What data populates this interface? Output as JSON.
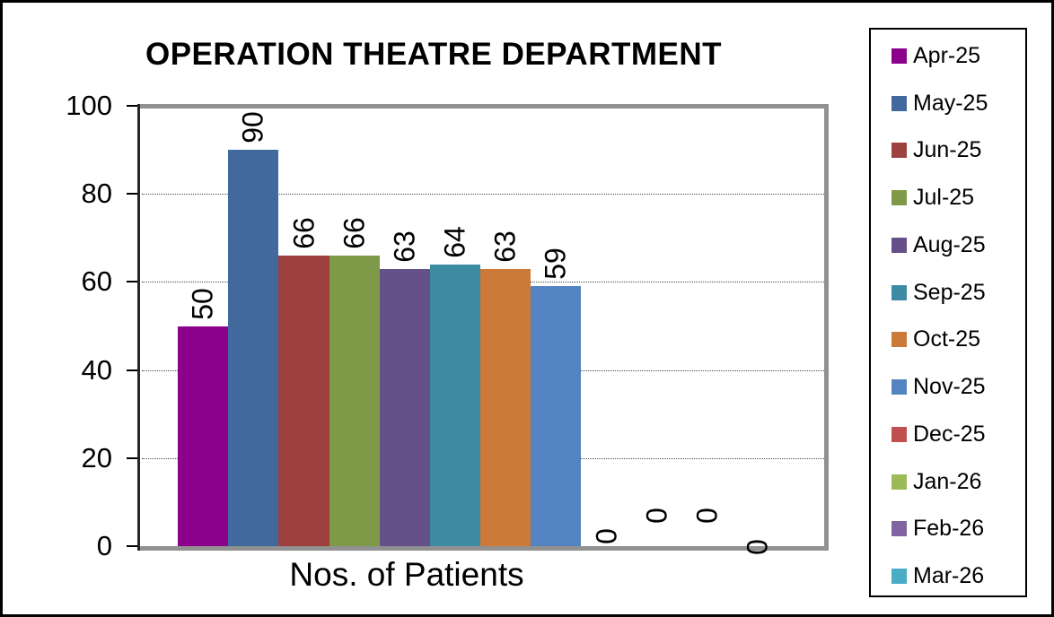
{
  "chart_data": {
    "type": "bar",
    "title": "OPERATION THEATRE DEPARTMENT",
    "xlabel": "Nos. of Patients",
    "ylabel": "",
    "ylim": [
      0,
      100
    ],
    "yticks": [
      0,
      20,
      40,
      60,
      80,
      100
    ],
    "grid": "horizontal-dotted",
    "legend_position": "right",
    "categories": [
      "Nos. of Patients"
    ],
    "series": [
      {
        "name": "Apr-25",
        "value": 50,
        "color": "#8B018B"
      },
      {
        "name": "May-25",
        "value": 90,
        "color": "#41699E"
      },
      {
        "name": "Jun-25",
        "value": 66,
        "color": "#9E413E"
      },
      {
        "name": "Jul-25",
        "value": 66,
        "color": "#7E9A48"
      },
      {
        "name": "Aug-25",
        "value": 63,
        "color": "#655089"
      },
      {
        "name": "Sep-25",
        "value": 64,
        "color": "#3E8CA3"
      },
      {
        "name": "Oct-25",
        "value": 63,
        "color": "#CB7A38"
      },
      {
        "name": "Nov-25",
        "value": 59,
        "color": "#5384C1"
      },
      {
        "name": "Dec-25",
        "value": 0,
        "color": "#C0504D"
      },
      {
        "name": "Jan-26",
        "value": 0,
        "color": "#9BBB59"
      },
      {
        "name": "Feb-26",
        "value": 0,
        "color": "#8064A2"
      },
      {
        "name": "Mar-26",
        "value": 0,
        "color": "#4BACC6"
      }
    ],
    "data_labels": {
      "rotation": -90,
      "position": "outside-end"
    }
  }
}
